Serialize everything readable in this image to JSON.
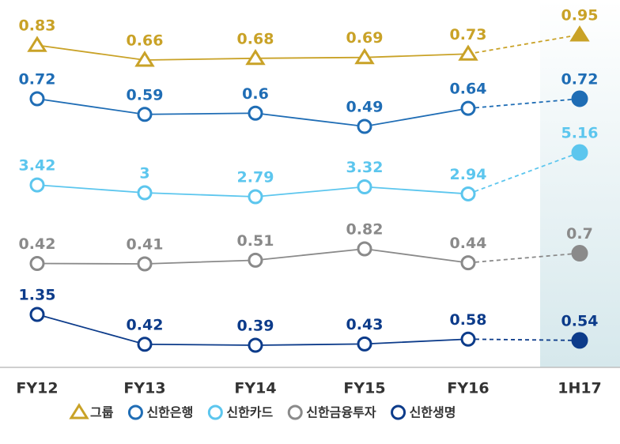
{
  "chart_data": {
    "type": "line",
    "categories": [
      "FY12",
      "FY13",
      "FY14",
      "FY15",
      "FY16",
      "1H17"
    ],
    "series": [
      {
        "name": "그룹",
        "color": "#c9a227",
        "marker": "triangle",
        "values": [
          0.83,
          0.66,
          0.68,
          0.69,
          0.73,
          0.95
        ]
      },
      {
        "name": "신한은행",
        "color": "#1f6db5",
        "marker": "circle",
        "values": [
          0.72,
          0.59,
          0.6,
          0.49,
          0.64,
          0.72
        ]
      },
      {
        "name": "신한카드",
        "color": "#5cc6ee",
        "marker": "circle",
        "values": [
          3.42,
          3.0,
          2.79,
          3.32,
          2.94,
          5.16
        ]
      },
      {
        "name": "신한금융투자",
        "color": "#8a8a8a",
        "marker": "circle",
        "values": [
          0.42,
          0.41,
          0.51,
          0.82,
          0.44,
          0.7
        ]
      },
      {
        "name": "신한생명",
        "color": "#0c3b8a",
        "marker": "circle",
        "values": [
          1.35,
          0.42,
          0.39,
          0.43,
          0.58,
          0.54
        ]
      }
    ]
  }
}
